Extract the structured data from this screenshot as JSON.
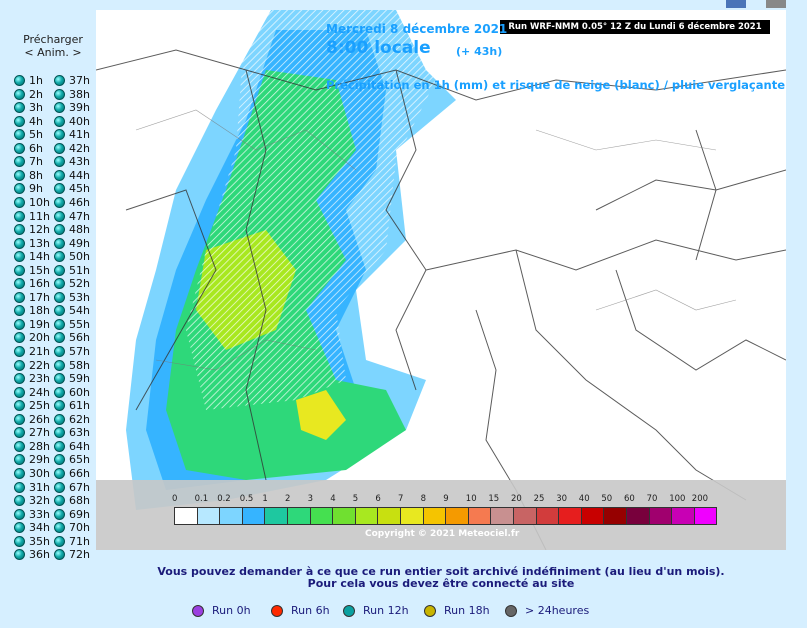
{
  "left": {
    "preload_label": "Précharger",
    "anim_label": "< Anim. >",
    "hours_col1": [
      "1h",
      "2h",
      "3h",
      "4h",
      "5h",
      "6h",
      "7h",
      "8h",
      "9h",
      "10h",
      "11h",
      "12h",
      "13h",
      "14h",
      "15h",
      "16h",
      "17h",
      "18h",
      "19h",
      "20h",
      "21h",
      "22h",
      "23h",
      "24h",
      "25h",
      "26h",
      "27h",
      "28h",
      "29h",
      "30h",
      "31h",
      "32h",
      "33h",
      "34h",
      "35h",
      "36h"
    ],
    "hours_col2": [
      "37h",
      "38h",
      "39h",
      "40h",
      "41h",
      "42h",
      "43h",
      "44h",
      "45h",
      "46h",
      "47h",
      "48h",
      "49h",
      "50h",
      "51h",
      "52h",
      "53h",
      "54h",
      "55h",
      "56h",
      "57h",
      "58h",
      "59h",
      "60h",
      "61h",
      "62h",
      "63h",
      "64h",
      "65h",
      "66h",
      "67h",
      "68h",
      "69h",
      "70h",
      "71h",
      "72h"
    ]
  },
  "map": {
    "run_title": "Run WRF-NMM 0.05° 12 Z du Lundi 6 décembre 2021",
    "date_line": "Mercredi 8 décembre 2021",
    "time_line": "8:00 locale",
    "offset": "(+ 43h)",
    "subtitle": "Précipitation en 1h (mm) et risque de neige (blanc) / pluie verglaçante",
    "copyright": "Copyright © 2021 Meteociel.fr",
    "legend_labels": [
      "0",
      "0.1",
      "0.2",
      "0.5",
      "1",
      "2",
      "3",
      "4",
      "5",
      "6",
      "7",
      "8",
      "9",
      "10",
      "15",
      "20",
      "25",
      "30",
      "40",
      "50",
      "60",
      "70",
      "100",
      "200"
    ],
    "legend_colors": [
      "#ffffff",
      "#b7e8ff",
      "#7dd5ff",
      "#36b4ff",
      "#1ec8a0",
      "#2ed87a",
      "#45e050",
      "#70e030",
      "#a8e820",
      "#c8e010",
      "#e8e820",
      "#f5c400",
      "#f59a00",
      "#f57a50",
      "#c89090",
      "#c86464",
      "#d23c3c",
      "#e61e1e",
      "#c80000",
      "#960000",
      "#78003c",
      "#a0006e",
      "#c800b4",
      "#f000ff"
    ]
  },
  "footer": {
    "note_line1": "Vous pouvez demander à ce que ce run entier soit archivé indéfiniment (au lieu d'un mois).",
    "note_line2": "Pour cela vous devez être connecté au site",
    "runs": [
      {
        "label": "Run 0h",
        "color": "#9b3fe0"
      },
      {
        "label": "Run 6h",
        "color": "#ff2a00"
      },
      {
        "label": "Run 12h",
        "color": "#0aa0a0"
      },
      {
        "label": "Run 18h",
        "color": "#c8b400"
      },
      {
        "label": "> 24heures",
        "color": "#666666"
      }
    ]
  }
}
